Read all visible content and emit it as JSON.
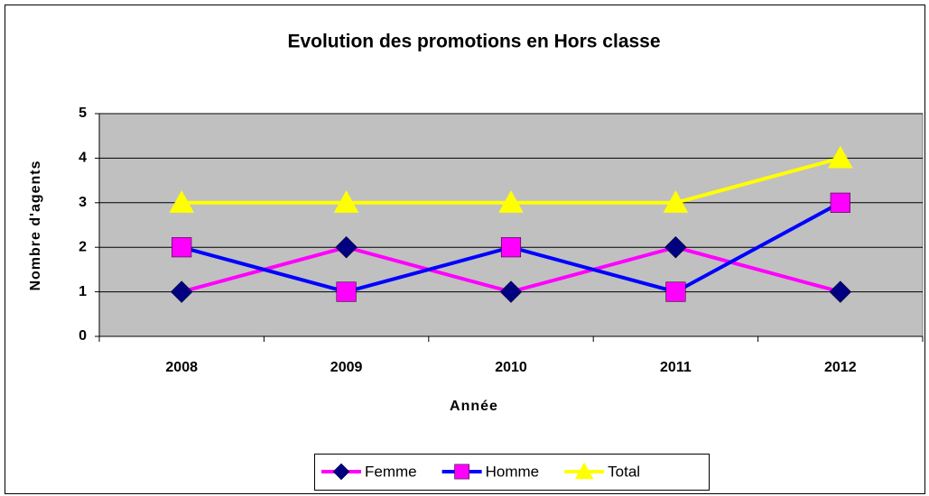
{
  "chart_data": {
    "type": "line",
    "title": "Evolution des promotions en Hors classe",
    "xlabel": "Année",
    "ylabel": "Nombre d'agents",
    "categories": [
      "2008",
      "2009",
      "2010",
      "2011",
      "2012"
    ],
    "series": [
      {
        "name": "Femme",
        "color": "#ff00ff",
        "marker": "diamond",
        "marker_color": "#000080",
        "values": [
          1,
          2,
          1,
          2,
          1
        ]
      },
      {
        "name": "Homme",
        "color": "#0000ff",
        "marker": "square",
        "marker_color": "#ff00ff",
        "values": [
          2,
          1,
          2,
          1,
          3
        ]
      },
      {
        "name": "Total",
        "color": "#ffff00",
        "marker": "triangle",
        "marker_color": "#ffff00",
        "values": [
          3,
          3,
          3,
          3,
          4
        ]
      }
    ],
    "ylim": [
      0,
      5
    ],
    "yticks": [
      0,
      1,
      2,
      3,
      4,
      5
    ],
    "grid": true,
    "plot_background": "#c0c0c0",
    "legend": "bottom"
  }
}
